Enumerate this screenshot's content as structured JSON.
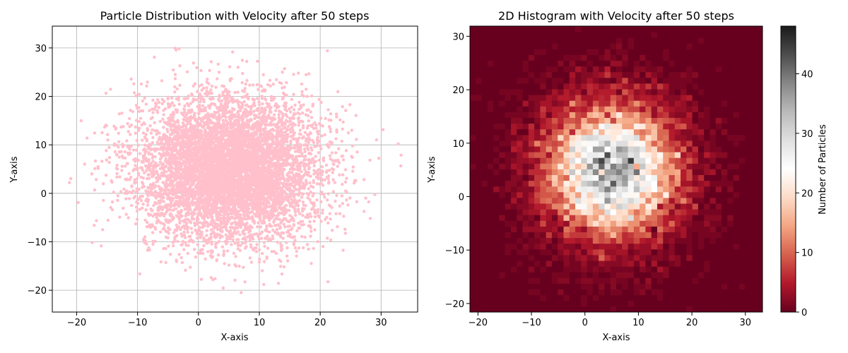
{
  "chart_data": [
    {
      "type": "scatter",
      "title": "Particle Distribution with Velocity after 50 steps",
      "xlabel": "X-axis",
      "ylabel": "Y-axis",
      "xlim": [
        -24,
        36
      ],
      "ylim": [
        -24.5,
        34.5
      ],
      "xticks": [
        -20,
        -10,
        0,
        10,
        20,
        30
      ],
      "yticks": [
        -20,
        -10,
        0,
        10,
        20,
        30
      ],
      "grid": true,
      "color": "#ffc0cb",
      "distribution": {
        "n_points": 7000,
        "center": [
          5,
          5
        ],
        "std": [
          7.5,
          7.5
        ]
      }
    },
    {
      "type": "heatmap",
      "title": "2D Histogram with Velocity after 50 steps",
      "xlabel": "X-axis",
      "ylabel": "Y-axis",
      "xlim": [
        -21.5,
        33.2
      ],
      "ylim": [
        -21.6,
        31.9
      ],
      "xticks": [
        -20,
        -10,
        0,
        10,
        20,
        30
      ],
      "yticks": [
        -20,
        -10,
        0,
        10,
        20,
        30
      ],
      "bins": [
        50,
        50
      ],
      "colormap": "RdGy",
      "colorbar": {
        "label": "Number of Particles",
        "range": [
          0,
          48
        ],
        "ticks": [
          0,
          10,
          20,
          30,
          40
        ]
      }
    }
  ]
}
